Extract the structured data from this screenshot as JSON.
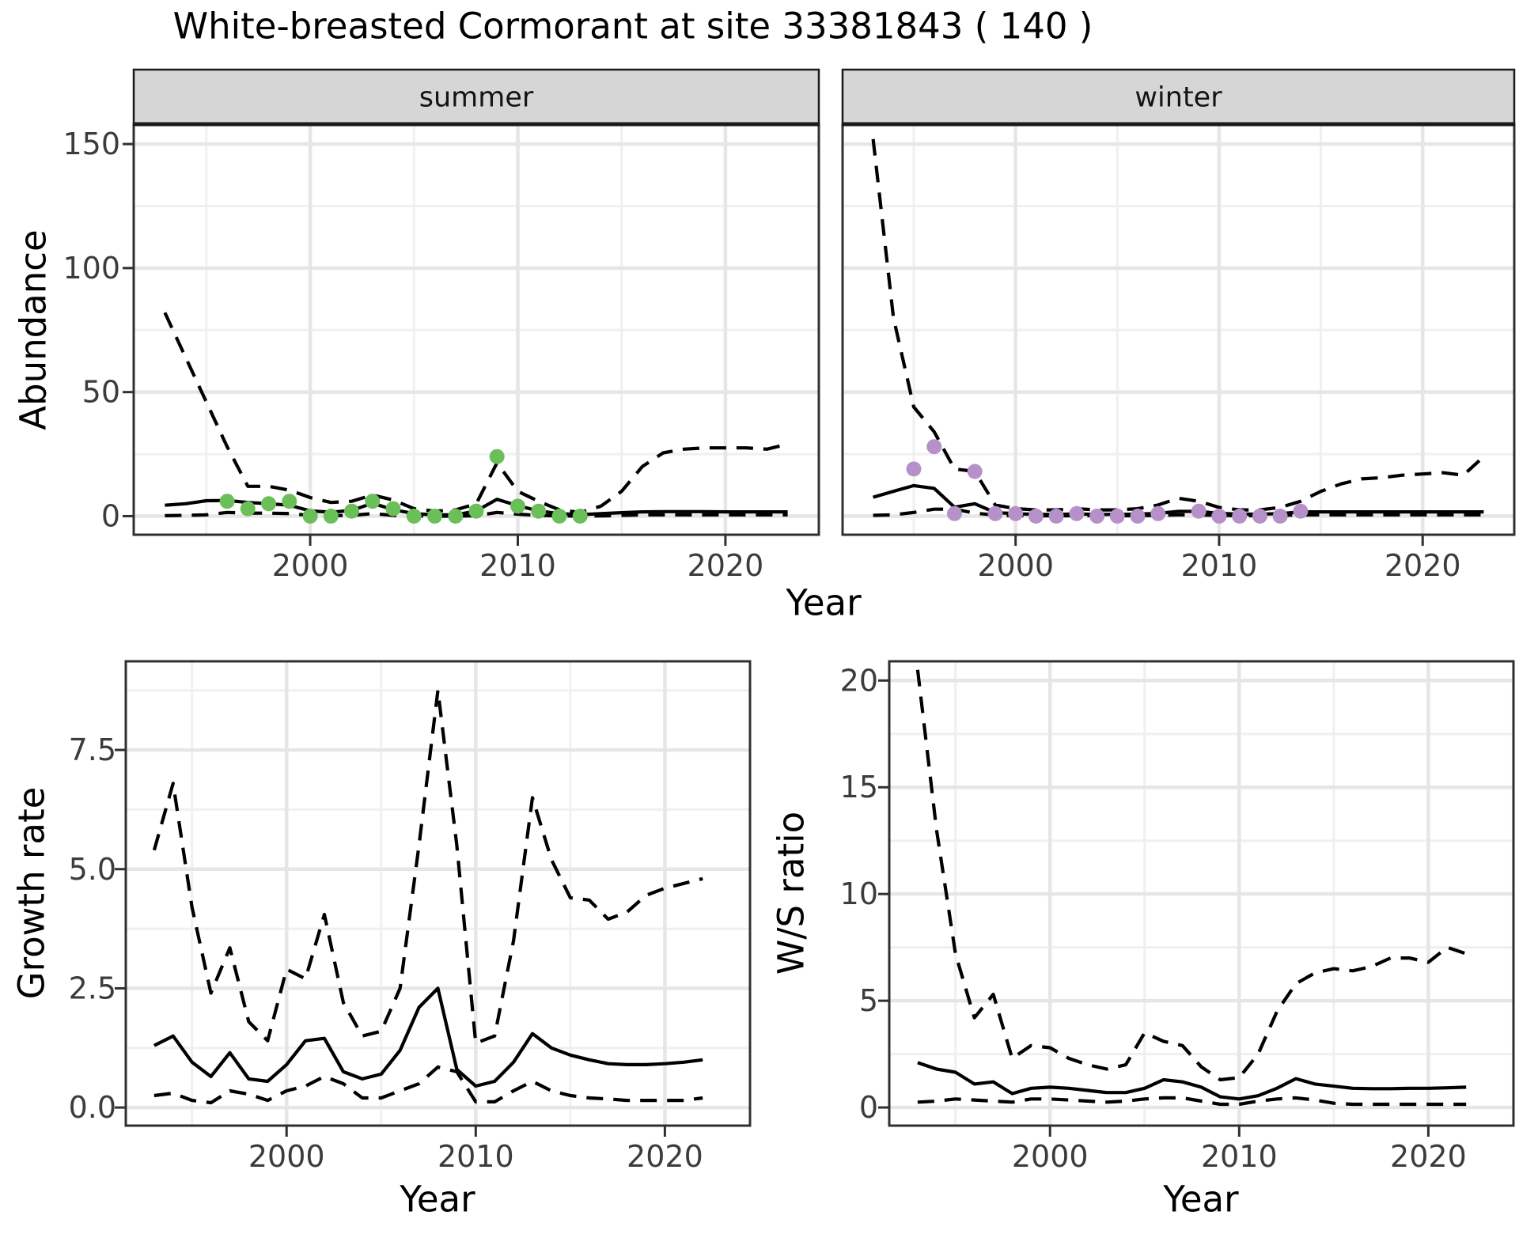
{
  "title": "White-breasted Cormorant at site 33381843 ( 140 )",
  "axis_titles": {
    "abundance": "Abundance",
    "growth": "Growth rate",
    "ws": "W/S ratio",
    "year_top": "Year",
    "year_growth": "Year",
    "year_ws": "Year"
  },
  "style": {
    "background": "#ffffff",
    "line_color": "#000000",
    "grid_major": "#e6e6e6",
    "grid_minor": "#f0f0f0",
    "panel_border": "#303030",
    "strip_background": "#d6d6d6",
    "strip_border": "#1a1a1a",
    "tick_text": "#3c3c3c",
    "summer_point": "#6bbf59",
    "winter_point": "#b690c9"
  },
  "chart_data": [
    {
      "id": "abundance_summer",
      "type": "line",
      "facet_label": "summer",
      "x_label": "Year",
      "y_label": "Abundance",
      "xlim": [
        1991.5,
        2024.5
      ],
      "ylim": [
        -7.5,
        158
      ],
      "x_ticks": [
        2000,
        2010,
        2020
      ],
      "x_minor": [
        1995,
        2005,
        2015
      ],
      "y_ticks": [
        {
          "v": 0,
          "label": "0"
        },
        {
          "v": 50,
          "label": "50"
        },
        {
          "v": 100,
          "label": "100"
        },
        {
          "v": 150,
          "label": "150"
        }
      ],
      "y_minor": [
        25,
        75,
        125
      ],
      "x": [
        1993,
        1994,
        1995,
        1996,
        1997,
        1998,
        1999,
        2000,
        2001,
        2002,
        2003,
        2004,
        2005,
        2006,
        2007,
        2008,
        2009,
        2010,
        2011,
        2012,
        2013,
        2014,
        2015,
        2016,
        2017,
        2018,
        2019,
        2020,
        2021,
        2022,
        2023
      ],
      "series": [
        {
          "name": "upper_95ci",
          "style": "dashed",
          "values": [
            82,
            64,
            46,
            28,
            12,
            12,
            10.5,
            7.5,
            5.5,
            6,
            8.5,
            6.5,
            3,
            2,
            2.5,
            5,
            21.5,
            10,
            6,
            2.5,
            1.5,
            4,
            10,
            20,
            25.5,
            27,
            27.5,
            27.5,
            27.5,
            27,
            29
          ]
        },
        {
          "name": "estimate",
          "style": "solid",
          "values": [
            4.4,
            5,
            6.2,
            6.3,
            5.5,
            5,
            4.4,
            2.1,
            1.6,
            2.3,
            5.2,
            2.6,
            1.0,
            0.5,
            0.5,
            2.1,
            6.8,
            4.2,
            2.1,
            1.0,
            0.6,
            1.0,
            1.4,
            1.7,
            1.8,
            1.8,
            1.8,
            1.7,
            1.7,
            1.7,
            1.7
          ]
        },
        {
          "name": "lower_95ci",
          "style": "dashed",
          "values": [
            0.2,
            0.3,
            0.5,
            1.5,
            1.2,
            1.2,
            1,
            0.3,
            0.2,
            0.3,
            1,
            0.3,
            0.1,
            0,
            0,
            0.2,
            1.5,
            0.8,
            0.3,
            0.1,
            0,
            0.1,
            0.3,
            0.5,
            0.5,
            0.5,
            0.5,
            0.5,
            0.5,
            0.5,
            0.5
          ]
        }
      ],
      "points": {
        "name": "observed-counts-summer",
        "color": "#6bbf59",
        "x": [
          1996,
          1997,
          1998,
          1999,
          2000,
          2001,
          2002,
          2003,
          2004,
          2005,
          2006,
          2007,
          2008,
          2009,
          2010,
          2011,
          2012,
          2013
        ],
        "values": [
          6,
          3,
          5,
          6,
          0,
          0,
          2,
          6,
          3,
          0,
          0,
          0,
          2,
          24,
          4,
          2,
          0,
          0
        ]
      }
    },
    {
      "id": "abundance_winter",
      "type": "line",
      "facet_label": "winter",
      "x_label": "Year",
      "y_label": "Abundance",
      "xlim": [
        1991.5,
        2024.5
      ],
      "ylim": [
        -7.5,
        158
      ],
      "x_ticks": [
        2000,
        2010,
        2020
      ],
      "x_minor": [
        1995,
        2005,
        2015
      ],
      "y_ticks": [
        {
          "v": 0,
          "label": "0"
        },
        {
          "v": 50,
          "label": "50"
        },
        {
          "v": 100,
          "label": "100"
        },
        {
          "v": 150,
          "label": "150"
        }
      ],
      "y_minor": [
        25,
        75,
        125
      ],
      "x": [
        1993,
        1994,
        1995,
        1996,
        1997,
        1998,
        1999,
        2000,
        2001,
        2002,
        2003,
        2004,
        2005,
        2006,
        2007,
        2008,
        2009,
        2010,
        2011,
        2012,
        2013,
        2014,
        2015,
        2016,
        2017,
        2018,
        2019,
        2020,
        2021,
        2022,
        2023
      ],
      "series": [
        {
          "name": "upper_95ci",
          "style": "dashed",
          "values": [
            152,
            80,
            44,
            34,
            19,
            18,
            4.5,
            3,
            2.5,
            2.5,
            3,
            2.5,
            2.5,
            3,
            4.5,
            7.2,
            6,
            3.5,
            2.5,
            2.5,
            3.5,
            6,
            10,
            13,
            15,
            15.5,
            16.5,
            17,
            17.5,
            16.5,
            24
          ]
        },
        {
          "name": "estimate",
          "style": "solid",
          "values": [
            7.6,
            10,
            12.3,
            11.2,
            3.6,
            5,
            1.4,
            1,
            0.7,
            0.7,
            0.9,
            0.7,
            0.7,
            0.8,
            1.1,
            1.9,
            1.9,
            1.1,
            0.8,
            0.8,
            1.0,
            1.7,
            1.7,
            1.7,
            1.7,
            1.7,
            1.7,
            1.7,
            1.7,
            1.7,
            1.7
          ]
        },
        {
          "name": "lower_95ci",
          "style": "dashed",
          "values": [
            0.3,
            0.5,
            1.5,
            2.8,
            2.8,
            1.2,
            0.4,
            0.2,
            0.15,
            0.15,
            0.2,
            0.15,
            0.15,
            0.2,
            0.3,
            0.5,
            0.5,
            0.3,
            0.2,
            0.2,
            0.3,
            0.5,
            0.5,
            0.5,
            0.5,
            0.5,
            0.5,
            0.5,
            0.5,
            0.5,
            0.5
          ]
        }
      ],
      "points": {
        "name": "observed-counts-winter",
        "color": "#b690c9",
        "x": [
          1995,
          1996,
          1997,
          1998,
          1999,
          2000,
          2001,
          2002,
          2003,
          2004,
          2005,
          2006,
          2007,
          2009,
          2010,
          2011,
          2012,
          2013,
          2014
        ],
        "values": [
          19,
          28,
          1,
          18,
          1,
          1,
          0,
          0,
          1,
          0,
          0,
          0,
          1,
          2,
          0,
          0,
          0,
          0,
          2
        ]
      }
    },
    {
      "id": "growth",
      "type": "line",
      "facet_label": null,
      "x_label": "Year",
      "y_label": "Growth rate",
      "xlim": [
        1991.5,
        2024.5
      ],
      "ylim": [
        -0.38,
        9.36
      ],
      "x_ticks": [
        2000,
        2010,
        2020
      ],
      "x_minor": [
        1995,
        2005,
        2015
      ],
      "y_ticks": [
        {
          "v": 0,
          "label": "0.0"
        },
        {
          "v": 2.5,
          "label": "2.5"
        },
        {
          "v": 5,
          "label": "5.0"
        },
        {
          "v": 7.5,
          "label": "7.5"
        }
      ],
      "y_minor": [
        1.25,
        3.75,
        6.25,
        8.75
      ],
      "x": [
        1993,
        1994,
        1995,
        1996,
        1997,
        1998,
        1999,
        2000,
        2001,
        2002,
        2003,
        2004,
        2005,
        2006,
        2007,
        2008,
        2009,
        2010,
        2011,
        2012,
        2013,
        2014,
        2015,
        2016,
        2017,
        2018,
        2019,
        2020,
        2021,
        2022
      ],
      "series": [
        {
          "name": "upper_95ci",
          "style": "dashed",
          "values": [
            5.4,
            6.8,
            4.2,
            2.4,
            3.35,
            1.8,
            1.4,
            2.9,
            2.7,
            4.05,
            2.2,
            1.5,
            1.6,
            2.5,
            5.5,
            8.75,
            5.5,
            1.35,
            1.5,
            3.5,
            6.5,
            5.2,
            4.4,
            4.35,
            3.95,
            4.1,
            4.45,
            4.6,
            4.7,
            4.8
          ]
        },
        {
          "name": "estimate",
          "style": "solid",
          "values": [
            1.3,
            1.5,
            0.95,
            0.65,
            1.15,
            0.6,
            0.55,
            0.9,
            1.4,
            1.45,
            0.75,
            0.6,
            0.7,
            1.2,
            2.1,
            2.5,
            0.8,
            0.45,
            0.55,
            0.95,
            1.55,
            1.25,
            1.1,
            1.0,
            0.92,
            0.9,
            0.9,
            0.92,
            0.95,
            1.0
          ]
        },
        {
          "name": "lower_95ci",
          "style": "dashed",
          "values": [
            0.25,
            0.3,
            0.15,
            0.1,
            0.35,
            0.28,
            0.15,
            0.35,
            0.45,
            0.65,
            0.5,
            0.2,
            0.2,
            0.35,
            0.5,
            0.85,
            0.75,
            0.12,
            0.12,
            0.35,
            0.55,
            0.35,
            0.25,
            0.2,
            0.18,
            0.15,
            0.15,
            0.15,
            0.15,
            0.2
          ]
        }
      ],
      "points": null
    },
    {
      "id": "ws",
      "type": "line",
      "facet_label": null,
      "x_label": "Year",
      "y_label": "W/S ratio",
      "xlim": [
        1991.5,
        2024.5
      ],
      "ylim": [
        -0.85,
        20.9
      ],
      "x_ticks": [
        2000,
        2010,
        2020
      ],
      "x_minor": [
        1995,
        2005,
        2015
      ],
      "y_ticks": [
        {
          "v": 0,
          "label": "0"
        },
        {
          "v": 5,
          "label": "5"
        },
        {
          "v": 10,
          "label": "10"
        },
        {
          "v": 15,
          "label": "15"
        },
        {
          "v": 20,
          "label": "20"
        }
      ],
      "y_minor": [
        2.5,
        7.5,
        12.5,
        17.5
      ],
      "x": [
        1993,
        1994,
        1995,
        1996,
        1997,
        1998,
        1999,
        2000,
        2001,
        2002,
        2003,
        2004,
        2005,
        2006,
        2007,
        2008,
        2009,
        2010,
        2011,
        2012,
        2013,
        2014,
        2015,
        2016,
        2017,
        2018,
        2019,
        2020,
        2021,
        2022
      ],
      "series": [
        {
          "name": "upper_95ci",
          "style": "dashed",
          "values": [
            20.5,
            13,
            7.2,
            4.2,
            5.3,
            2.3,
            2.9,
            2.8,
            2.3,
            2.0,
            1.8,
            2.0,
            3.5,
            3.1,
            2.9,
            1.9,
            1.3,
            1.4,
            2.5,
            4.5,
            5.8,
            6.3,
            6.5,
            6.4,
            6.6,
            7.0,
            7.0,
            6.8,
            7.5,
            7.2
          ]
        },
        {
          "name": "estimate",
          "style": "solid",
          "values": [
            2.1,
            1.8,
            1.65,
            1.1,
            1.2,
            0.65,
            0.9,
            0.95,
            0.9,
            0.8,
            0.7,
            0.7,
            0.9,
            1.3,
            1.2,
            0.95,
            0.5,
            0.4,
            0.55,
            0.9,
            1.35,
            1.1,
            1.0,
            0.9,
            0.88,
            0.88,
            0.9,
            0.9,
            0.92,
            0.95
          ]
        },
        {
          "name": "lower_95ci",
          "style": "dashed",
          "values": [
            0.25,
            0.3,
            0.4,
            0.35,
            0.3,
            0.25,
            0.4,
            0.4,
            0.35,
            0.3,
            0.25,
            0.3,
            0.4,
            0.45,
            0.45,
            0.3,
            0.15,
            0.15,
            0.3,
            0.4,
            0.45,
            0.35,
            0.2,
            0.15,
            0.15,
            0.15,
            0.15,
            0.15,
            0.15,
            0.15
          ]
        }
      ],
      "points": null
    }
  ]
}
